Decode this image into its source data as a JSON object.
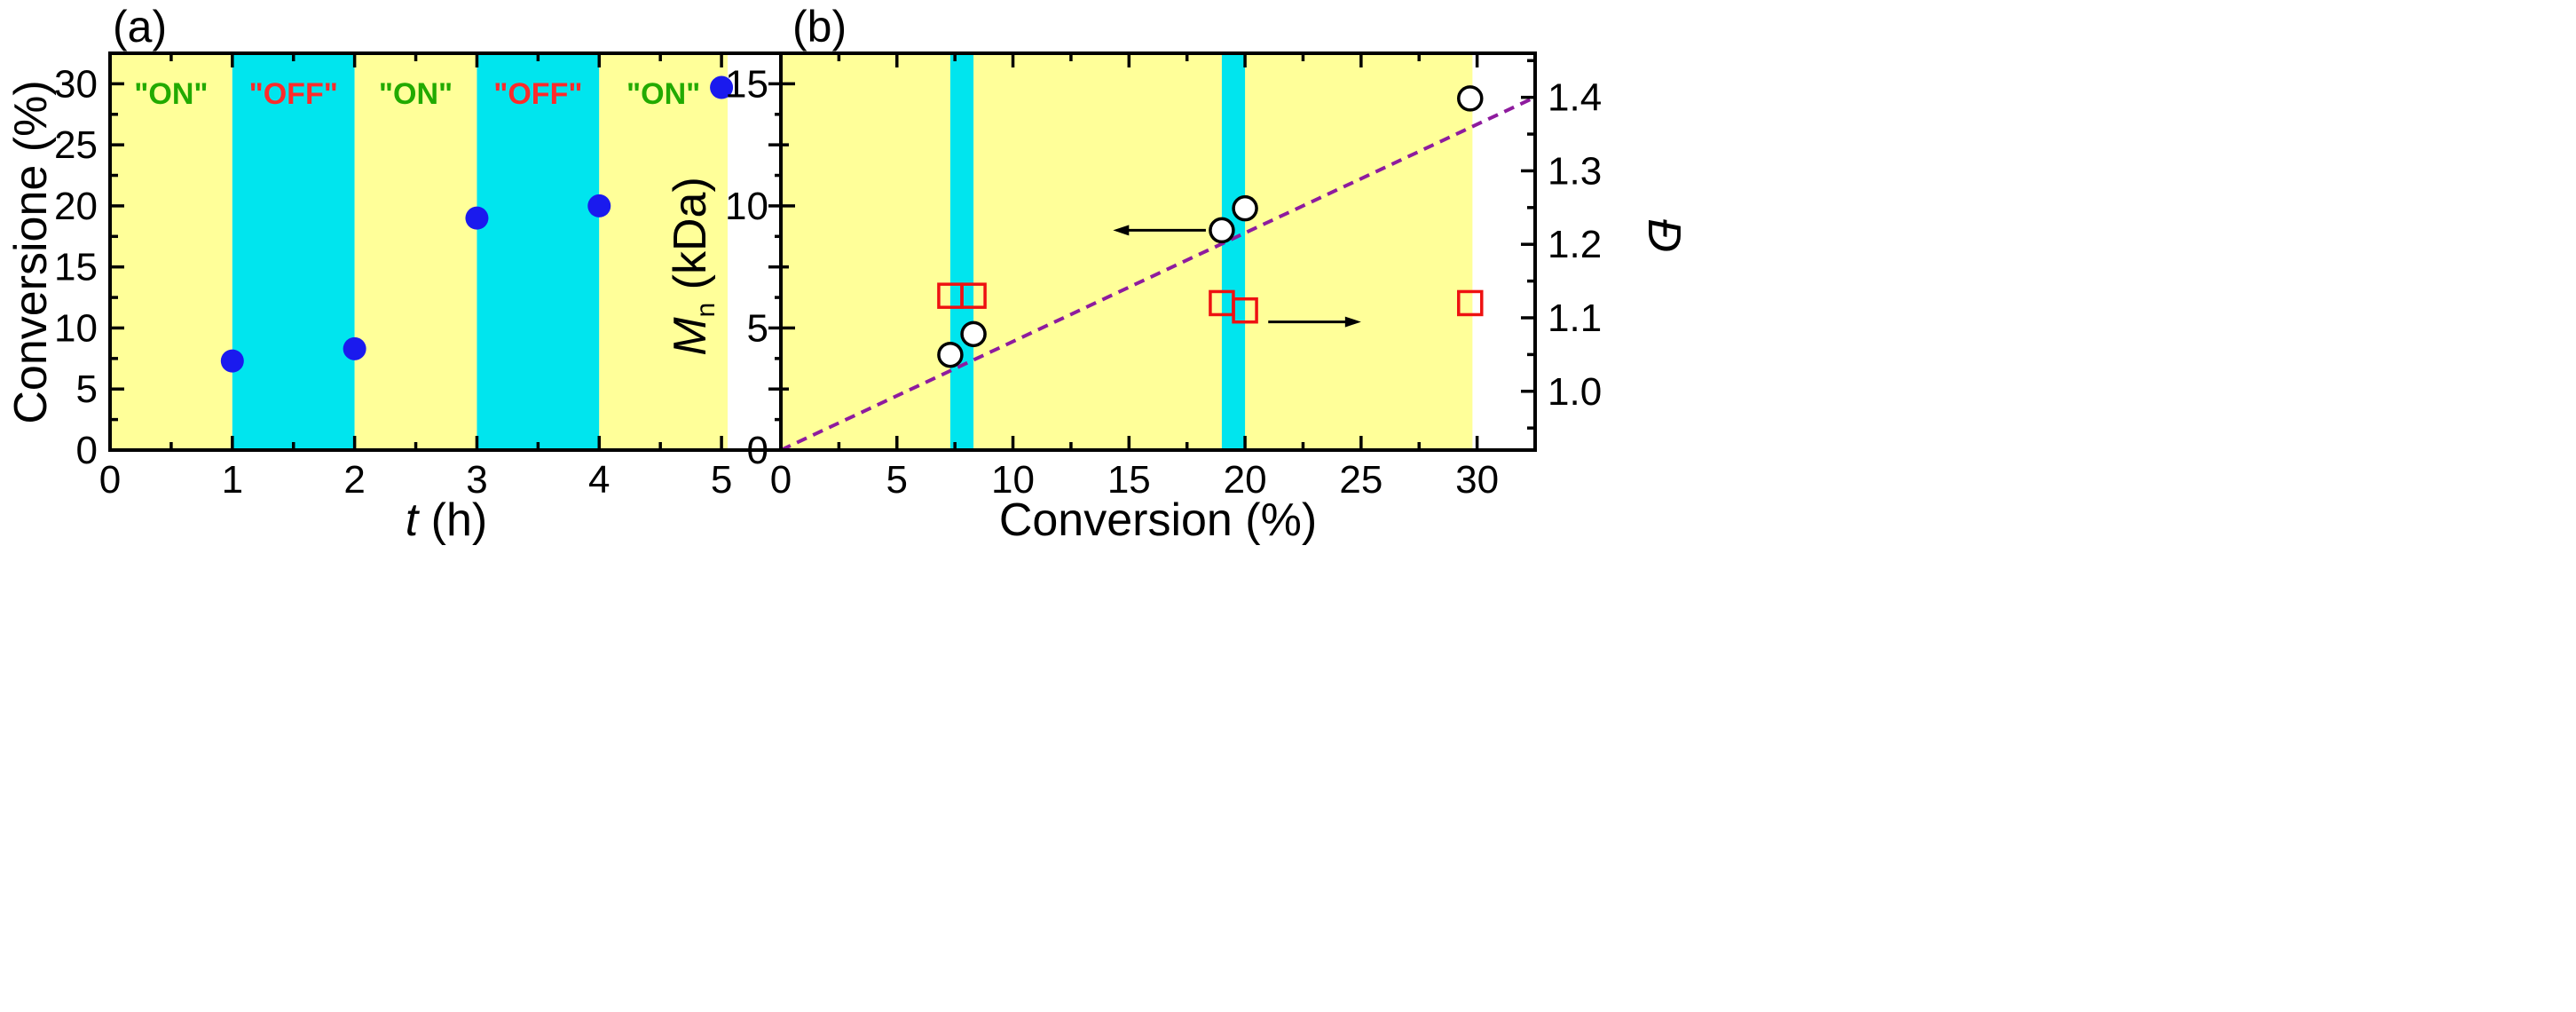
{
  "colors": {
    "on_band": "#ffff99",
    "off_band": "#00e5ee",
    "on_text": "#22aa00",
    "off_text": "#ff2a2a",
    "point_fill_a": "#1a1aee",
    "dashed_line": "#8e1b9e",
    "square_stroke": "#ee1111"
  },
  "chart_data": [
    {
      "panel_label": "(a)",
      "type": "scatter",
      "xlabel_italic": "t",
      "xlabel_rest": " (h)",
      "ylabel": "Conversione (%)",
      "xlim": [
        0,
        5.5
      ],
      "ylim": [
        0,
        32.5
      ],
      "xticks": [
        "0",
        "1",
        "2",
        "3",
        "4",
        "5"
      ],
      "yticks": [
        "0",
        "5",
        "10",
        "15",
        "20",
        "25",
        "30"
      ],
      "bands": [
        {
          "state": "on",
          "label": "\"ON\"",
          "x0": 0,
          "x1": 1
        },
        {
          "state": "off",
          "label": "\"OFF\"",
          "x0": 1,
          "x1": 2
        },
        {
          "state": "on",
          "label": "\"ON\"",
          "x0": 2,
          "x1": 3
        },
        {
          "state": "off",
          "label": "\"OFF\"",
          "x0": 3,
          "x1": 4
        },
        {
          "state": "on",
          "label": "\"ON\"",
          "x0": 4,
          "x1": 5.05
        }
      ],
      "points": [
        {
          "x": 1,
          "y": 7.3
        },
        {
          "x": 2,
          "y": 8.3
        },
        {
          "x": 3,
          "y": 19.0
        },
        {
          "x": 4,
          "y": 20.0
        },
        {
          "x": 5,
          "y": 29.7
        }
      ]
    },
    {
      "panel_label": "(b)",
      "type": "scatter",
      "xlabel": "Conversion (%)",
      "ylabel_main": "M",
      "ylabel_sub": "n",
      "ylabel_rest": " (kDa)",
      "y2label": "Đ",
      "xlim": [
        0,
        32.5
      ],
      "ylim": [
        0,
        16.25
      ],
      "y2lim": [
        0.92,
        1.46
      ],
      "xticks": [
        "0",
        "5",
        "10",
        "15",
        "20",
        "25",
        "30"
      ],
      "yticks": [
        "0",
        "5",
        "10",
        "15"
      ],
      "y2ticks": [
        "1.0",
        "1.1",
        "1.2",
        "1.3",
        "1.4"
      ],
      "yellow_range": [
        0,
        29.8
      ],
      "cyan_bands": [
        {
          "x0": 7.3,
          "x1": 8.3
        },
        {
          "x0": 19.0,
          "x1": 20.0
        }
      ],
      "trend_line": {
        "x": [
          0,
          32.5
        ],
        "y": [
          0,
          14.45
        ]
      },
      "mn_series": {
        "name": "Mn",
        "points": [
          {
            "x": 7.3,
            "y": 3.9
          },
          {
            "x": 8.3,
            "y": 4.75
          },
          {
            "x": 19.0,
            "y": 9.0
          },
          {
            "x": 20.0,
            "y": 9.9
          },
          {
            "x": 29.7,
            "y": 14.4
          }
        ]
      },
      "dispersity_series": {
        "name": "Đ",
        "points": [
          {
            "x": 7.3,
            "y": 1.13
          },
          {
            "x": 8.3,
            "y": 1.13
          },
          {
            "x": 19.0,
            "y": 1.12
          },
          {
            "x": 20.0,
            "y": 1.11
          },
          {
            "x": 29.7,
            "y": 1.12
          }
        ]
      },
      "arrows": [
        {
          "direction": "left",
          "x": 19.0,
          "y": 9.0,
          "length": 4.0
        },
        {
          "direction": "right",
          "x": 21.0,
          "y": 5.25,
          "length": 4.0
        }
      ]
    }
  ]
}
